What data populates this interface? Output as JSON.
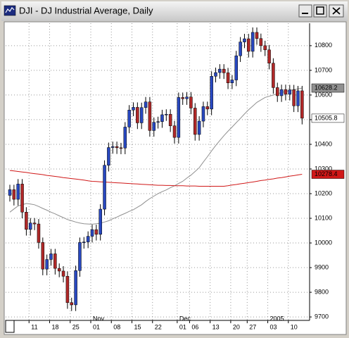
{
  "window_title": "DJI - DJ Industrial Average, Daily",
  "chart_data": {
    "type": "candlestick",
    "categories": [
      null,
      null,
      null,
      null,
      null,
      "11",
      null,
      null,
      null,
      null,
      "18",
      null,
      null,
      null,
      null,
      "25",
      null,
      null,
      null,
      null,
      "01",
      null,
      null,
      null,
      null,
      "08",
      null,
      null,
      null,
      null,
      "15",
      null,
      null,
      null,
      null,
      "22",
      null,
      null,
      null,
      null,
      null,
      "01",
      null,
      null,
      "06",
      null,
      null,
      null,
      null,
      "13",
      null,
      null,
      null,
      null,
      "20",
      null,
      null,
      null,
      "27",
      null,
      null,
      null,
      null,
      "03",
      null,
      null,
      null,
      null,
      "10",
      null,
      null,
      null
    ],
    "months": [
      null,
      null,
      null,
      null,
      null,
      null,
      null,
      null,
      null,
      null,
      null,
      null,
      null,
      null,
      null,
      null,
      null,
      null,
      null,
      null,
      "Nov",
      null,
      null,
      null,
      null,
      null,
      null,
      null,
      null,
      null,
      null,
      null,
      null,
      null,
      null,
      null,
      null,
      null,
      null,
      null,
      null,
      "Dec",
      null,
      null,
      null,
      null,
      null,
      null,
      null,
      null,
      null,
      null,
      null,
      null,
      null,
      null,
      null,
      null,
      null,
      null,
      null,
      null,
      null,
      "2005",
      null,
      null,
      null,
      null,
      null,
      null,
      null,
      null
    ],
    "open": [
      10193,
      10216,
      10177,
      10239,
      10125,
      10055,
      10081,
      10077,
      10002,
      9894,
      9933,
      9956,
      9897,
      9886,
      9865,
      9758,
      9749,
      9888,
      10002,
      10004,
      10027,
      10054,
      10035,
      10137,
      10315,
      10387,
      10391,
      10386,
      10385,
      10470,
      10539,
      10550,
      10487,
      10549,
      10572,
      10456,
      10489,
      10492,
      10520,
      10522,
      10475,
      10428,
      10590,
      10585,
      10592,
      10547,
      10440,
      10494,
      10553,
      10543,
      10676,
      10691,
      10705,
      10690,
      10649,
      10661,
      10759,
      10815,
      10828,
      10777,
      10854,
      10829,
      10800,
      10783,
      10729,
      10630,
      10597,
      10622,
      10603,
      10621,
      10556,
      10617
    ],
    "high": [
      10236,
      10236,
      10259,
      10259,
      10145,
      10101,
      10101,
      10097,
      10022,
      9953,
      9976,
      9976,
      9917,
      9906,
      9885,
      9778,
      9908,
      10022,
      10024,
      10047,
      10074,
      10074,
      10157,
      10335,
      10407,
      10411,
      10411,
      10406,
      10490,
      10559,
      10570,
      10570,
      10569,
      10592,
      10592,
      10509,
      10512,
      10540,
      10542,
      10542,
      10495,
      10610,
      10610,
      10612,
      10612,
      10567,
      10514,
      10573,
      10573,
      10696,
      10711,
      10725,
      10725,
      10710,
      10681,
      10779,
      10835,
      10848,
      10848,
      10874,
      10874,
      10849,
      10820,
      10803,
      10749,
      10650,
      10642,
      10642,
      10641,
      10641,
      10637,
      10637
    ],
    "low": [
      10168,
      10152,
      10152,
      10100,
      10030,
      10030,
      10052,
      9977,
      9869,
      9869,
      9908,
      9872,
      9861,
      9840,
      9733,
      9724,
      9724,
      9863,
      9977,
      9979,
      10002,
      10010,
      10010,
      10112,
      10290,
      10362,
      10361,
      10360,
      10360,
      10445,
      10514,
      10462,
      10462,
      10524,
      10431,
      10431,
      10464,
      10467,
      10495,
      10450,
      10403,
      10403,
      10560,
      10560,
      10522,
      10415,
      10415,
      10469,
      10518,
      10518,
      10651,
      10666,
      10665,
      10624,
      10624,
      10636,
      10734,
      10790,
      10752,
      10752,
      10804,
      10775,
      10758,
      10704,
      10605,
      10572,
      10572,
      10578,
      10578,
      10531,
      10531,
      10480.8
    ],
    "close": [
      10216,
      10177,
      10239,
      10125,
      10055,
      10081,
      10077,
      10002,
      9894,
      9933,
      9956,
      9897,
      9886,
      9865,
      9758,
      9749,
      9888,
      10002,
      10004,
      10027,
      10054,
      10035,
      10137,
      10315,
      10387,
      10391,
      10386,
      10385,
      10470,
      10539,
      10550,
      10487,
      10549,
      10572,
      10456,
      10489,
      10492,
      10520,
      10522,
      10475,
      10428,
      10590,
      10585,
      10592,
      10547,
      10440,
      10494,
      10553,
      10543,
      10676,
      10691,
      10705,
      10690,
      10649,
      10661,
      10759,
      10815,
      10828,
      10777,
      10854,
      10829,
      10800,
      10783,
      10729,
      10630,
      10597,
      10622,
      10603,
      10621,
      10556,
      10617,
      10505.8
    ],
    "up_color": "#2848c0",
    "down_color": "#b02828",
    "close_box_color": "#ffffff",
    "series": [
      {
        "color": "#909090",
        "values": [
          10125,
          10138,
          10150,
          10155,
          10160,
          10158,
          10155,
          10148,
          10140,
          10133,
          10125,
          10118,
          10110,
          10103,
          10095,
          10090,
          10085,
          10081,
          10078,
          10077,
          10076,
          10078,
          10080,
          10085,
          10090,
          10098,
          10105,
          10113,
          10120,
          10128,
          10135,
          10145,
          10155,
          10168,
          10180,
          10190,
          10200,
          10208,
          10215,
          10224,
          10232,
          10241,
          10250,
          10263,
          10275,
          10290,
          10305,
          10328,
          10350,
          10373,
          10395,
          10415,
          10435,
          10453,
          10470,
          10488,
          10505,
          10523,
          10540,
          10555,
          10570,
          10580,
          10590,
          10595,
          10600,
          10605,
          10610,
          10614,
          10618,
          10622,
          10625,
          10628.2
        ]
      },
      {
        "color": "#d01818",
        "values": [
          10294,
          10292,
          10290,
          10288,
          10286,
          10283,
          10281,
          10279,
          10277,
          10274,
          10272,
          10270,
          10268,
          10265,
          10263,
          10261,
          10259,
          10257,
          10255,
          10252,
          10250,
          10249,
          10248,
          10247,
          10246,
          10245,
          10244,
          10243,
          10242,
          10241,
          10240,
          10239,
          10238,
          10237,
          10236,
          10235,
          10234,
          10234,
          10233,
          10233,
          10232,
          10232,
          10232,
          10231,
          10231,
          10231,
          10230,
          10230,
          10230,
          10230,
          10230,
          10230,
          10230,
          10232,
          10235,
          10237,
          10240,
          10242,
          10245,
          10247,
          10250,
          10253,
          10255,
          10258,
          10260,
          10263,
          10265,
          10268,
          10271,
          10273,
          10276,
          10278.4
        ]
      }
    ],
    "ylim": [
      9686,
      10891
    ],
    "yticks": [
      9700,
      9800,
      9900,
      10000,
      10100,
      10200,
      10300,
      10400,
      10500,
      10600,
      10700,
      10800
    ],
    "grid": true
  }
}
